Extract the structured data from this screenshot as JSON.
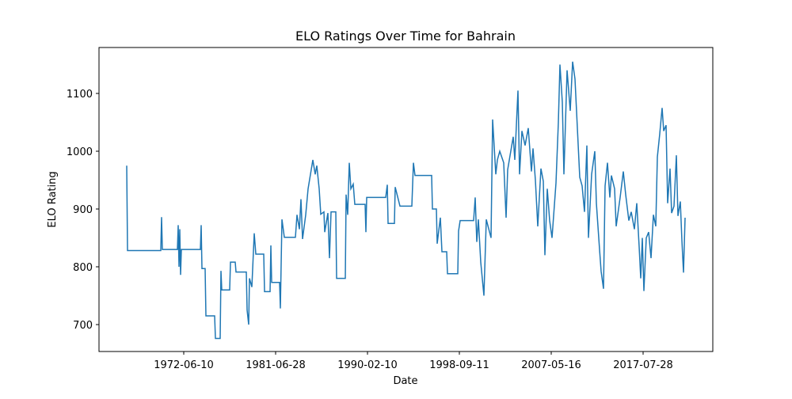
{
  "chart_data": {
    "type": "line",
    "title": "ELO Ratings Over Time for Bahrain",
    "x_label": "Date",
    "y_label": "ELO Rating",
    "xlim": [
      -35,
      740
    ],
    "ylim": [
      653.4,
      1179.5
    ],
    "xticks": [
      {
        "value": 72,
        "label": "1972-06-10"
      },
      {
        "value": 188,
        "label": "1981-06-28"
      },
      {
        "value": 304,
        "label": "1990-02-10"
      },
      {
        "value": 420,
        "label": "1998-09-11"
      },
      {
        "value": 536,
        "label": "2007-05-16"
      },
      {
        "value": 652,
        "label": "2017-07-28"
      }
    ],
    "yticks": [
      700,
      800,
      900,
      1000,
      1100
    ],
    "series": [
      {
        "color": "#1f77b4",
        "x": [
          0,
          1,
          43,
          44,
          45,
          64,
          65,
          66,
          67,
          68,
          69,
          93,
          94,
          95,
          99,
          100,
          111,
          112,
          118,
          119,
          120,
          130,
          131,
          137,
          138,
          151,
          152,
          154,
          155,
          158,
          161,
          163,
          173,
          174,
          181,
          182,
          183,
          193,
          194,
          196,
          199,
          213,
          215,
          218,
          220,
          222,
          226,
          229,
          235,
          238,
          240,
          243,
          245,
          249,
          250,
          254,
          256,
          258,
          264,
          265,
          276,
          277,
          279,
          281,
          283,
          286,
          288,
          301,
          302,
          303,
          327,
          329,
          330,
          338,
          339,
          345,
          360,
          362,
          364,
          385,
          386,
          391,
          392,
          396,
          398,
          404,
          405,
          418,
          419,
          421,
          438,
          440,
          442,
          444,
          447,
          451,
          454,
          460,
          462,
          466,
          468,
          471,
          476,
          479,
          481,
          488,
          490,
          494,
          496,
          499,
          503,
          507,
          511,
          513,
          516,
          519,
          523,
          526,
          528,
          531,
          534,
          537,
          542,
          545,
          547,
          550,
          552,
          556,
          560,
          563,
          566,
          569,
          572,
          575,
          578,
          581,
          583,
          587,
          591,
          593,
          597,
          599,
          602,
          604,
          607,
          610,
          612,
          616,
          618,
          623,
          627,
          630,
          634,
          637,
          641,
          644,
          647,
          649,
          651,
          653,
          656,
          659,
          662,
          665,
          668,
          670,
          673,
          676,
          678,
          681,
          683,
          686,
          688,
          691,
          694,
          696,
          699,
          701,
          703,
          705
        ],
        "values": [
          975,
          828,
          828,
          886,
          830,
          830,
          872,
          800,
          865,
          786,
          830,
          830,
          872,
          797,
          797,
          715,
          715,
          676,
          676,
          793,
          760,
          760,
          808,
          808,
          791,
          791,
          725,
          700,
          780,
          765,
          858,
          822,
          822,
          757,
          757,
          837,
          773,
          773,
          728,
          882,
          851,
          851,
          890,
          865,
          917,
          848,
          890,
          935,
          985,
          960,
          975,
          935,
          891,
          895,
          860,
          893,
          815,
          895,
          895,
          780,
          780,
          925,
          890,
          980,
          935,
          943,
          908,
          908,
          860,
          920,
          920,
          942,
          875,
          875,
          938,
          905,
          905,
          980,
          958,
          958,
          900,
          900,
          840,
          885,
          826,
          826,
          788,
          788,
          862,
          880,
          880,
          920,
          843,
          882,
          808,
          750,
          882,
          850,
          1055,
          960,
          985,
          1000,
          980,
          885,
          968,
          1025,
          985,
          1105,
          960,
          1035,
          1010,
          1040,
          965,
          1005,
          950,
          870,
          970,
          948,
          820,
          935,
          880,
          850,
          945,
          1050,
          1150,
          1085,
          960,
          1140,
          1070,
          1155,
          1125,
          1040,
          955,
          940,
          895,
          1010,
          850,
          960,
          1000,
          910,
          830,
          792,
          762,
          940,
          980,
          920,
          958,
          935,
          870,
          920,
          965,
          925,
          880,
          895,
          865,
          910,
          835,
          780,
          850,
          758,
          850,
          860,
          815,
          890,
          870,
          990,
          1030,
          1075,
          1035,
          1045,
          910,
          970,
          893,
          905,
          993,
          888,
          913,
          845,
          790,
          885
        ]
      }
    ]
  }
}
